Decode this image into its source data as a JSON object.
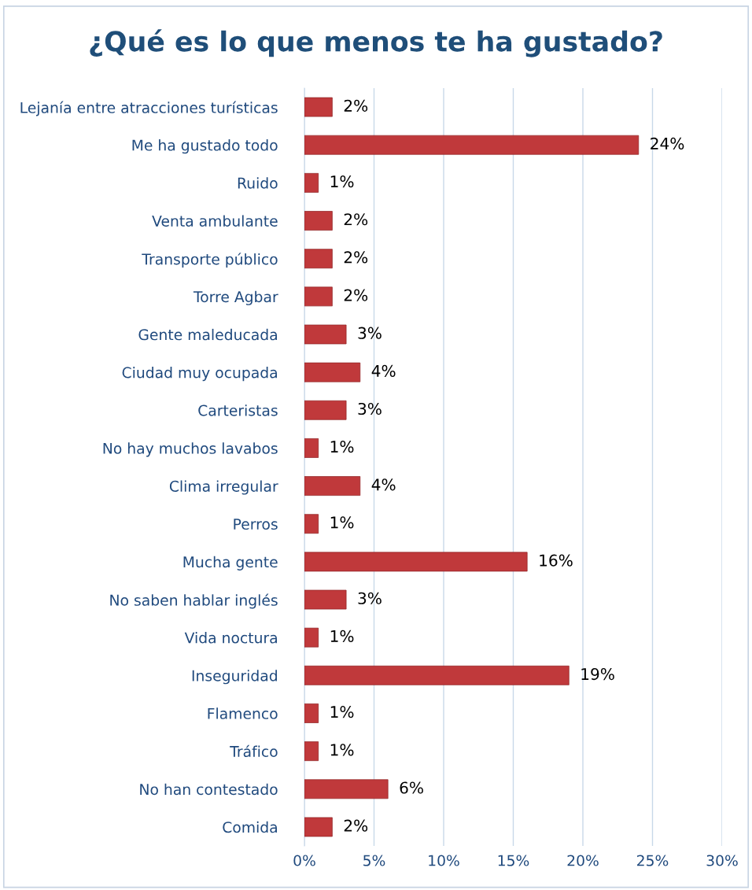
{
  "chart_data": {
    "type": "bar",
    "orientation": "horizontal",
    "title": "¿Qué es lo que menos te ha gustado?",
    "categories": [
      "Lejanía entre atracciones turísticas",
      "Me ha gustado todo",
      "Ruido",
      "Venta ambulante",
      "Transporte público",
      "Torre Agbar",
      "Gente maleducada",
      "Ciudad muy ocupada",
      "Carteristas",
      "No hay muchos lavabos",
      "Clima irregular",
      "Perros",
      "Mucha gente",
      "No saben hablar inglés",
      "Vida noctura",
      "Inseguridad",
      "Flamenco",
      "Tráfico",
      "No han contestado",
      "Comida"
    ],
    "values": [
      2,
      24,
      1,
      2,
      2,
      2,
      3,
      4,
      3,
      1,
      4,
      1,
      16,
      3,
      1,
      19,
      1,
      1,
      6,
      2
    ],
    "value_labels": [
      "2%",
      "24%",
      "1%",
      "2%",
      "2%",
      "2%",
      "3%",
      "4%",
      "3%",
      "1%",
      "4%",
      "1%",
      "16%",
      "3%",
      "1%",
      "19%",
      "1%",
      "1%",
      "6%",
      "2%"
    ],
    "color": "#c0393b",
    "xlim": [
      0,
      30
    ],
    "xticks": [
      {
        "value": 0,
        "label": "0%"
      },
      {
        "value": 5,
        "label": "5%"
      },
      {
        "value": 10,
        "label": "10%"
      },
      {
        "value": 15,
        "label": "15%"
      },
      {
        "value": 20,
        "label": "20%"
      },
      {
        "value": 25,
        "label": "25%"
      },
      {
        "value": 30,
        "label": "30%"
      }
    ],
    "grid": "x",
    "legend": false
  }
}
